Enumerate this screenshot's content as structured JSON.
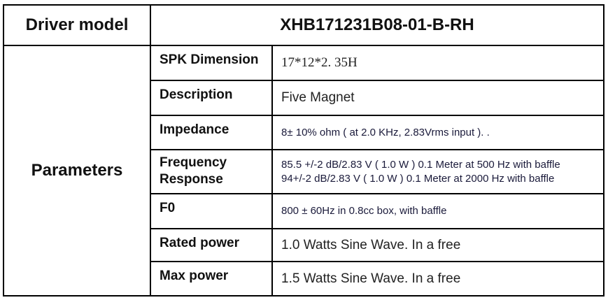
{
  "header": {
    "label": "Driver model",
    "model": "XHB171231B08-01-B-RH"
  },
  "section_label": "Parameters",
  "rows": [
    {
      "label": "SPK Dimension",
      "value": "17*12*2. 35H"
    },
    {
      "label": "Description",
      "value": "Five Magnet"
    },
    {
      "label": "Impedance",
      "value": "8± 10% ohm ( at 2.0 KHz,  2.83Vrms input ). ."
    },
    {
      "label": "Frequency Response",
      "value": "85.5 +/-2 dB/2.83 V ( 1.0 W ) 0.1 Meter at 500 Hz with baffle",
      "value2": "94+/-2 dB/2.83 V ( 1.0 W ) 0.1 Meter at 2000 Hz with baffle"
    },
    {
      "label": "F0",
      "value": "800 ± 60Hz in 0.8cc box, with baffle"
    },
    {
      "label": "Rated power",
      "value": "1.0 Watts Sine Wave. In a free"
    },
    {
      "label": "Max power",
      "value": "1.5 Watts Sine Wave. In a free"
    }
  ]
}
